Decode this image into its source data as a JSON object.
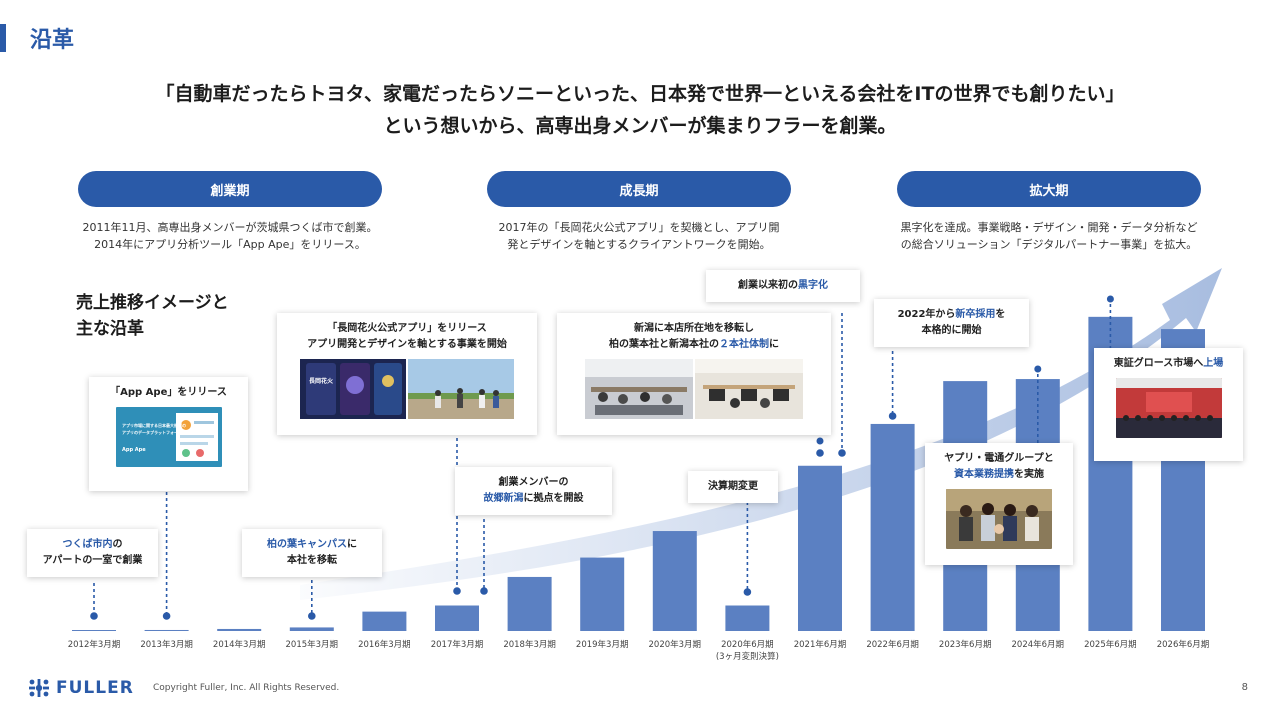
{
  "page": {
    "title": "沿革",
    "headline_line1": "「自動車だったらトヨタ、家電だったらソニーといった、日本発で世界一といえる会社をITの世界でも創りたい」",
    "headline_line2": "という想いから、高専出身メンバーが集まりフラーを創業。",
    "chart_heading_line1": "売上推移イメージと",
    "chart_heading_line2": "主な沿革",
    "page_number": "8"
  },
  "phases": [
    {
      "label": "創業期",
      "desc_line1": "2011年11月、高専出身メンバーが茨城県つくば市で創業。",
      "desc_line2": "2014年にアプリ分析ツール「App Ape」をリリース。"
    },
    {
      "label": "成長期",
      "desc_line1": "2017年の「長岡花火公式アプリ」を契機とし、アプリ開",
      "desc_line2": "発とデザインを軸とするクライアントワークを開始。"
    },
    {
      "label": "拡大期",
      "desc_line1": "黒字化を達成。事業戦略・デザイン・開発・データ分析など",
      "desc_line2": "の総合ソリューション「デジタルパートナー事業」を拡大。"
    }
  ],
  "chart_data": {
    "type": "bar",
    "categories": [
      "2012年3月期",
      "2013年3月期",
      "2014年3月期",
      "2015年3月期",
      "2016年3月期",
      "2017年3月期",
      "2018年3月期",
      "2019年3月期",
      "2020年3月期",
      "2020年6月期",
      "2021年6月期",
      "2022年6月期",
      "2023年6月期",
      "2024年6月期",
      "2025年6月期",
      "2026年6月期"
    ],
    "category_sublabels": [
      "",
      "",
      "",
      "",
      "",
      "",
      "",
      "",
      "",
      "(3ヶ月変則決算)",
      "",
      "",
      "",
      "",
      "",
      ""
    ],
    "values": [
      0.5,
      1,
      2,
      3.5,
      19,
      25,
      53,
      72,
      98,
      25,
      162,
      203,
      245,
      247,
      308,
      296
    ],
    "bar_color": "#5b80c2",
    "trend_arrow_color": "#a8bde0",
    "marker_color": "#2a5aa8"
  },
  "callouts": {
    "tsukuba": {
      "hl": "つくば市内",
      "t1": "の",
      "t2": "アパートの一室で創業"
    },
    "appape": {
      "t1": "「App Ape」をリリース",
      "img_text1": "アプリ市場に関する日本最大規模の",
      "img_text2": "アプリのデータプラットフォーム",
      "img_brand": "App Ape"
    },
    "kashiwa": {
      "hl": "柏の葉キャンパス",
      "t1": "に",
      "t2": "本社を移転"
    },
    "nagaoka": {
      "t1": "「長岡花火公式アプリ」をリリース",
      "t2": "アプリ開発とデザインを軸とする事業を開始",
      "img_text": "長岡花火"
    },
    "niigata_base": {
      "t1": "創業メンバーの",
      "hl": "故郷新潟",
      "t2": "に拠点を開設"
    },
    "niigata_hq": {
      "t1": "新潟に本店所在地を移転し",
      "t2a": "柏の葉本社と新潟本社の",
      "hl": "２本社体制",
      "t2b": "に"
    },
    "fiscal": {
      "t1": "決算期変更"
    },
    "profit": {
      "t1": "創業以来初の",
      "hl": "黒字化"
    },
    "recruit": {
      "t1": "2022年から",
      "hl": "新卒採用",
      "t1b": "を",
      "t2": "本格的に開始"
    },
    "dentsu": {
      "t1": "ヤプリ・電通グループと",
      "hl": "資本業務提携",
      "t2": "を実施"
    },
    "tse": {
      "t1": "東証グロース市場へ",
      "hl": "上場"
    }
  },
  "footer": {
    "logo_text": "FULLER",
    "copyright": "Copyright Fuller, Inc. All Rights Reserved."
  }
}
